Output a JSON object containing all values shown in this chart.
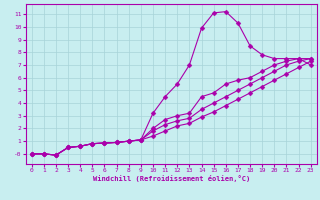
{
  "xlabel": "Windchill (Refroidissement éolien,°C)",
  "bg_color": "#c8eef0",
  "line_color": "#aa00aa",
  "grid_color": "#a8d4d8",
  "xlim": [
    -0.5,
    23.5
  ],
  "ylim": [
    -0.8,
    11.8
  ],
  "xticks": [
    0,
    1,
    2,
    3,
    4,
    5,
    6,
    7,
    8,
    9,
    10,
    11,
    12,
    13,
    14,
    15,
    16,
    17,
    18,
    19,
    20,
    21,
    22,
    23
  ],
  "yticks": [
    0,
    1,
    2,
    3,
    4,
    5,
    6,
    7,
    8,
    9,
    10,
    11
  ],
  "ytick_labels": [
    "-0",
    "1",
    "2",
    "3",
    "4",
    "5",
    "6",
    "7",
    "8",
    "9",
    "10",
    "11"
  ],
  "line1_x": [
    0,
    1,
    2,
    3,
    4,
    5,
    6,
    7,
    8,
    9,
    10,
    11,
    12,
    13,
    14,
    15,
    16,
    17,
    18,
    19,
    20,
    21,
    22,
    23
  ],
  "line1_y": [
    0.0,
    0.0,
    -0.1,
    0.5,
    0.6,
    0.8,
    0.85,
    0.9,
    1.0,
    1.1,
    3.2,
    4.5,
    5.5,
    7.0,
    9.9,
    11.1,
    11.2,
    10.3,
    8.5,
    7.8,
    7.5,
    7.5,
    7.5,
    7.0
  ],
  "line2_x": [
    0,
    1,
    2,
    3,
    4,
    5,
    6,
    7,
    8,
    9,
    10,
    11,
    12,
    13,
    14,
    15,
    16,
    17,
    18,
    19,
    20,
    21,
    22,
    23
  ],
  "line2_y": [
    0.0,
    0.0,
    -0.1,
    0.5,
    0.6,
    0.8,
    0.85,
    0.9,
    1.0,
    1.1,
    2.0,
    2.7,
    3.0,
    3.2,
    4.5,
    4.8,
    5.5,
    5.8,
    6.0,
    6.5,
    7.0,
    7.3,
    7.5,
    7.5
  ],
  "line3_x": [
    0,
    1,
    2,
    3,
    4,
    5,
    6,
    7,
    8,
    9,
    10,
    11,
    12,
    13,
    14,
    15,
    16,
    17,
    18,
    19,
    20,
    21,
    22,
    23
  ],
  "line3_y": [
    0.0,
    0.0,
    -0.1,
    0.5,
    0.6,
    0.8,
    0.85,
    0.9,
    1.0,
    1.1,
    1.8,
    2.3,
    2.6,
    2.8,
    3.5,
    4.0,
    4.5,
    5.0,
    5.5,
    6.0,
    6.5,
    7.0,
    7.3,
    7.5
  ],
  "line4_x": [
    0,
    1,
    2,
    3,
    4,
    5,
    6,
    7,
    8,
    9,
    10,
    11,
    12,
    13,
    14,
    15,
    16,
    17,
    18,
    19,
    20,
    21,
    22,
    23
  ],
  "line4_y": [
    0.0,
    0.0,
    -0.1,
    0.5,
    0.6,
    0.8,
    0.85,
    0.9,
    1.0,
    1.1,
    1.4,
    1.8,
    2.2,
    2.4,
    2.9,
    3.3,
    3.8,
    4.3,
    4.8,
    5.3,
    5.8,
    6.3,
    6.8,
    7.3
  ]
}
